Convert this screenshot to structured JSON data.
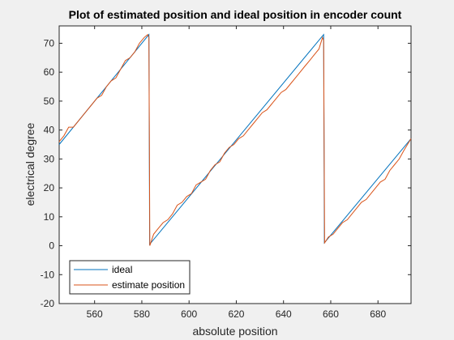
{
  "chart_data": {
    "type": "line",
    "title": "Plot of estimated position and ideal position in encoder count",
    "xlabel": "absolute position",
    "ylabel": "electrical degree",
    "xlim": [
      545,
      694
    ],
    "ylim": [
      -20,
      76
    ],
    "xticks": [
      560,
      580,
      600,
      620,
      640,
      660,
      680
    ],
    "yticks": [
      -20,
      -10,
      0,
      10,
      20,
      30,
      40,
      50,
      60,
      70
    ],
    "grid": false,
    "legend_position": "bottom-left",
    "series": [
      {
        "name": "ideal",
        "color": "#0072bd",
        "x": [
          545,
          583,
          583.3,
          657,
          657.3,
          694
        ],
        "y": [
          35,
          73,
          0.5,
          73,
          1,
          37
        ]
      },
      {
        "name": "estimate position",
        "color": "#d95319",
        "x": [
          545,
          547,
          549,
          551,
          553,
          555,
          557,
          559,
          561,
          563,
          565,
          567,
          569,
          571,
          573,
          575,
          577,
          579,
          581,
          582.5,
          583,
          583.4,
          585,
          587,
          589,
          591,
          593,
          595,
          597,
          599,
          601,
          603,
          605,
          607,
          609,
          611,
          613,
          615,
          617,
          619,
          621,
          623,
          625,
          627,
          629,
          631,
          633,
          635,
          637,
          639,
          641,
          643,
          645,
          647,
          649,
          651,
          653,
          655,
          656.5,
          657,
          657.4,
          659,
          661,
          663,
          665,
          667,
          669,
          671,
          673,
          675,
          677,
          679,
          681,
          683,
          685,
          687,
          689,
          691,
          694
        ],
        "y": [
          36,
          38,
          41,
          41,
          43,
          45,
          47,
          49,
          51,
          52,
          55,
          57,
          58,
          61,
          64,
          65,
          67,
          70,
          72,
          73,
          72,
          0,
          4,
          6,
          8,
          9,
          11,
          14,
          15,
          17,
          18,
          21,
          22,
          23,
          26,
          28,
          29,
          32,
          34,
          35,
          37,
          38,
          40,
          42,
          44,
          46,
          47,
          49,
          51,
          53,
          54,
          56,
          58,
          60,
          62,
          64,
          66,
          68,
          72,
          71,
          1,
          3,
          4,
          6,
          8,
          9,
          11,
          13,
          15,
          16,
          18,
          20,
          22,
          23,
          26,
          28,
          30,
          33,
          37
        ]
      }
    ]
  }
}
